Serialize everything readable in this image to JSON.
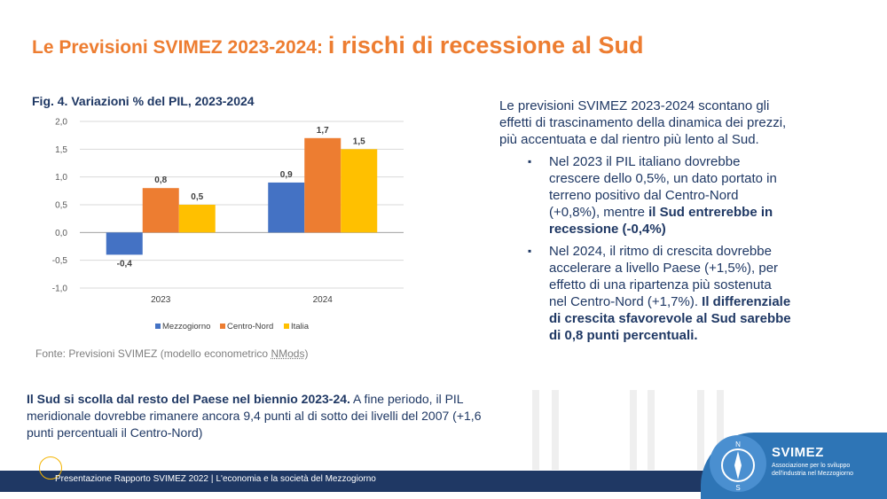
{
  "slide": {
    "title_part1": "Le Previsioni SVIMEZ 2023-2024: ",
    "title_part2": "i rischi di recessione al Sud",
    "fig_caption": "Fig. 4. Variazioni % del PIL, 2023-2024",
    "source_prefix": "Fonte: Previsioni SVIMEZ (modello econometrico ",
    "source_model": "NMods",
    "source_suffix": ")",
    "bottom_bold": "Il Sud si scolla dal resto del Paese nel biennio 2023-24.",
    "bottom_rest": " A fine periodo, il PIL meridionale dovrebbe rimanere ancora 9,4 punti al di sotto dei livelli del 2007 (+1,6 punti percentuali il Centro-Nord)",
    "intro": "Le previsioni SVIMEZ 2023-2024 scontano gli effetti di trascinamento della dinamica dei prezzi, più accentuata e dal rientro più lento al Sud.",
    "bullet_glyph": "▪",
    "bullet1_normal": "Nel 2023 il PIL italiano dovrebbe crescere dello 0,5%, un dato portato in terreno positivo dal Centro-Nord (+0,8%), mentre ",
    "bullet1_bold": "il Sud entrerebbe in recessione (-0,4%)",
    "bullet2_normal": "Nel 2024, il ritmo di crescita dovrebbe accelerare a livello Paese (+1,5%), per effetto di una ripartenza più sostenuta nel Centro-Nord (+1,7%). ",
    "bullet2_bold": "Il differenziale di crescita sfavorevole al Sud sarebbe di 0,8 punti percentuali.",
    "footer_part1": "Presentazione Rapporto SVIMEZ 2022",
    "footer_sep": "|",
    "footer_part2": "L'economia e la società del Mezzogiorno",
    "logo_name": "SVIMEZ",
    "logo_sub": "Associazione per lo sviluppo dell'industria nel Mezzogiorno",
    "logo_letters": [
      "N",
      "S"
    ]
  },
  "colors": {
    "title": "#ed7d31",
    "navy": "#1f3864",
    "mezzogiorno": "#4472c4",
    "centro_nord": "#ed7d31",
    "italia": "#ffc000"
  },
  "chart_data": {
    "type": "bar",
    "categories": [
      "2023",
      "2024"
    ],
    "series": [
      {
        "name": "Mezzogiorno",
        "values": [
          -0.4,
          0.9
        ],
        "labels": [
          "-0,4",
          "0,9"
        ]
      },
      {
        "name": "Centro-Nord",
        "values": [
          0.8,
          1.7
        ],
        "labels": [
          "0,8",
          "1,7"
        ]
      },
      {
        "name": "Italia",
        "values": [
          0.5,
          1.5
        ],
        "labels": [
          "0,5",
          "1,5"
        ]
      }
    ],
    "ylim": [
      -1.0,
      2.0
    ],
    "yticks": [
      -1.0,
      -0.5,
      0.0,
      0.5,
      1.0,
      1.5,
      2.0
    ],
    "ytick_labels": [
      "-1,0",
      "-0,5",
      "0,0",
      "0,5",
      "1,0",
      "1,5",
      "2,0"
    ],
    "grid": true,
    "legend": "bottom"
  }
}
